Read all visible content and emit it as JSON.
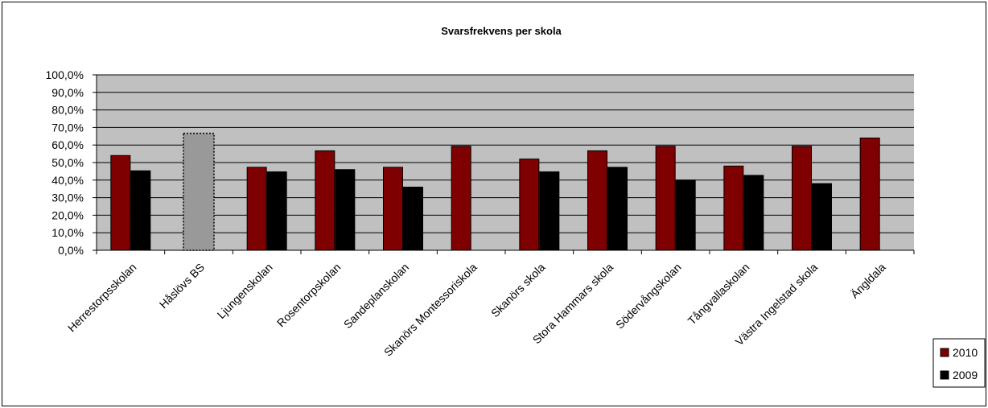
{
  "chart_data": {
    "type": "bar",
    "title": "Svarsfrekvens per skola",
    "categories": [
      "Herrestorpsskolan",
      "Håslövs BS",
      "Ljungenskolan",
      "Rosentorpskolan",
      "Sandeplanskolan",
      "Skanörs Montessoriskola",
      "Skanörs skola",
      "Stora Hammars skola",
      "Södervångskolan",
      "Tångvallaskolan",
      "Västra Ingelstad skola",
      "Ängldala"
    ],
    "series": [
      {
        "name": "2010",
        "color": "#7f0000",
        "values": [
          54.0,
          null,
          47.3,
          56.7,
          47.3,
          59.3,
          52.0,
          56.7,
          59.3,
          48.0,
          59.3,
          64.0
        ]
      },
      {
        "name": "2009",
        "color": "#000000",
        "values": [
          45.3,
          null,
          44.7,
          46.0,
          36.0,
          null,
          44.7,
          47.3,
          40.0,
          42.7,
          38.0,
          null
        ]
      }
    ],
    "special_bars": [
      {
        "category": "Håslövs BS",
        "value": 66.7,
        "color": "#999999",
        "style": "dotted-outline"
      }
    ],
    "yticks": [
      "0,0%",
      "10,0%",
      "20,0%",
      "30,0%",
      "40,0%",
      "50,0%",
      "60,0%",
      "70,0%",
      "80,0%",
      "90,0%",
      "100,0%"
    ],
    "ylim": [
      0,
      100
    ],
    "xlabel": "",
    "ylabel": "",
    "grid": true,
    "plot_background": "#c0c0c0",
    "legend_position": "right"
  }
}
